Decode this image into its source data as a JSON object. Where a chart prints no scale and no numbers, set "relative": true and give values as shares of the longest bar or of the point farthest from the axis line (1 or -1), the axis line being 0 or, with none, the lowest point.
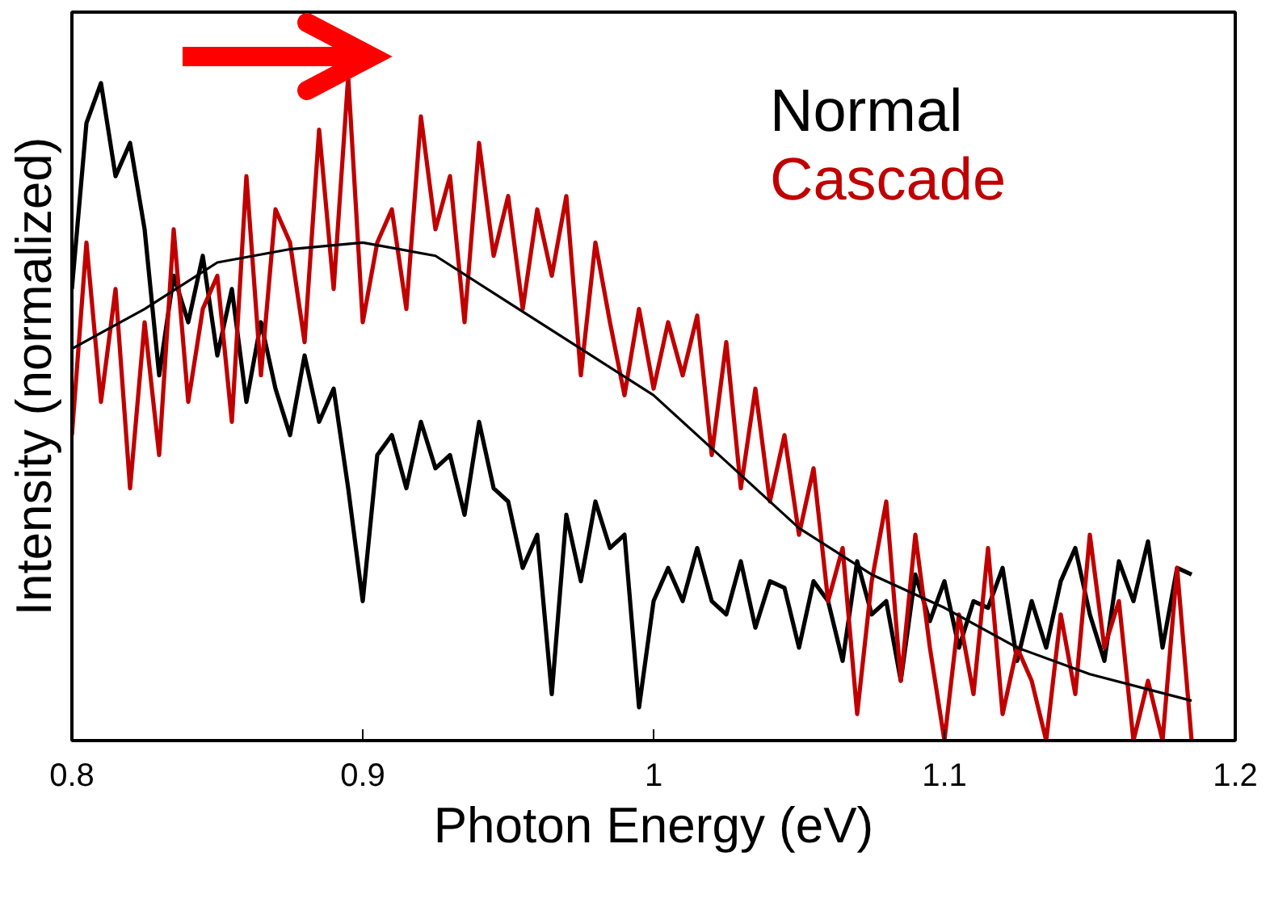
{
  "chart_data": {
    "type": "line",
    "relative": true,
    "xlabel": "Photon Energy (eV)",
    "ylabel": "Intensity (normalized)",
    "xlim": [
      0.8,
      1.2
    ],
    "xticks": [
      0.8,
      0.9,
      1,
      1.1,
      1.2
    ],
    "tick_labels": "x",
    "grid": false,
    "legend": "top right",
    "marker": "none",
    "line_style": "solid",
    "x": [
      0.8,
      0.805,
      0.81,
      0.815,
      0.82,
      0.825,
      0.83,
      0.835,
      0.84,
      0.845,
      0.85,
      0.855,
      0.86,
      0.865,
      0.87,
      0.875,
      0.88,
      0.885,
      0.89,
      0.895,
      0.9,
      0.905,
      0.91,
      0.915,
      0.92,
      0.925,
      0.93,
      0.935,
      0.94,
      0.945,
      0.95,
      0.955,
      0.96,
      0.965,
      0.97,
      0.975,
      0.98,
      0.985,
      0.99,
      0.995,
      1.0,
      1.005,
      1.01,
      1.015,
      1.02,
      1.025,
      1.03,
      1.035,
      1.04,
      1.045,
      1.05,
      1.055,
      1.06,
      1.065,
      1.07,
      1.075,
      1.08,
      1.085,
      1.09,
      1.095,
      1.1,
      1.105,
      1.11,
      1.115,
      1.12,
      1.125,
      1.13,
      1.135,
      1.14,
      1.145,
      1.15,
      1.155,
      1.16,
      1.165,
      1.17,
      1.175,
      1.18,
      1.185
    ],
    "series": [
      {
        "name": "Normal",
        "color": "#000000",
        "values": [
          0.68,
          0.93,
          0.99,
          0.85,
          0.9,
          0.77,
          0.55,
          0.7,
          0.63,
          0.73,
          0.58,
          0.68,
          0.51,
          0.63,
          0.53,
          0.46,
          0.58,
          0.48,
          0.53,
          0.38,
          0.21,
          0.43,
          0.46,
          0.38,
          0.48,
          0.41,
          0.43,
          0.34,
          0.48,
          0.38,
          0.36,
          0.26,
          0.31,
          0.07,
          0.34,
          0.24,
          0.36,
          0.29,
          0.31,
          0.05,
          0.21,
          0.26,
          0.21,
          0.29,
          0.21,
          0.19,
          0.27,
          0.17,
          0.24,
          0.23,
          0.14,
          0.24,
          0.21,
          0.12,
          0.27,
          0.19,
          0.21,
          0.09,
          0.25,
          0.18,
          0.24,
          0.14,
          0.21,
          0.2,
          0.26,
          0.12,
          0.21,
          0.14,
          0.24,
          0.29,
          0.19,
          0.12,
          0.27,
          0.21,
          0.3,
          0.14,
          0.26,
          0.25
        ]
      },
      {
        "name": "Cascade",
        "color": "#c00000",
        "values": [
          0.46,
          0.75,
          0.51,
          0.68,
          0.38,
          0.63,
          0.43,
          0.77,
          0.51,
          0.65,
          0.7,
          0.48,
          0.85,
          0.55,
          0.8,
          0.75,
          0.6,
          0.92,
          0.68,
          1.0,
          0.63,
          0.75,
          0.8,
          0.65,
          0.94,
          0.77,
          0.85,
          0.63,
          0.9,
          0.73,
          0.82,
          0.65,
          0.8,
          0.7,
          0.82,
          0.55,
          0.75,
          0.63,
          0.52,
          0.65,
          0.53,
          0.63,
          0.55,
          0.64,
          0.43,
          0.6,
          0.38,
          0.53,
          0.36,
          0.46,
          0.31,
          0.41,
          0.21,
          0.29,
          0.04,
          0.24,
          0.36,
          0.09,
          0.31,
          0.14,
          0,
          0.19,
          0.07,
          0.29,
          0.04,
          0.14,
          0.09,
          0,
          0.19,
          0.07,
          0.31,
          0.14,
          0.21,
          0,
          0.09,
          0,
          0.26,
          0
        ]
      },
      {
        "color": "#000000",
        "x": [
          0.8,
          0.825,
          0.85,
          0.875,
          0.9,
          0.925,
          0.95,
          0.975,
          1.0,
          1.025,
          1.05,
          1.075,
          1.1,
          1.125,
          1.15,
          1.185
        ],
        "values": [
          0.59,
          0.65,
          0.72,
          0.74,
          0.75,
          0.73,
          0.66,
          0.59,
          0.52,
          0.42,
          0.32,
          0.25,
          0.2,
          0.14,
          0.1,
          0.06
        ]
      }
    ]
  }
}
